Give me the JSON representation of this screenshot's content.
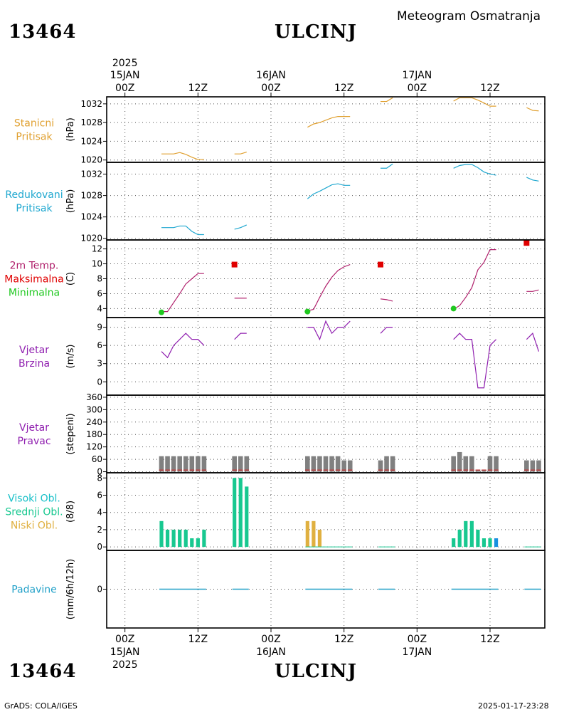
{
  "header": {
    "station_id": "13464",
    "station_name": "ULCINJ",
    "product": "Meteogram Osmatranja"
  },
  "footer": {
    "station_id": "13464",
    "station_name": "ULCINJ",
    "software": "GrADS: COLA/IGES",
    "timestamp": "2025-01-17-23:28"
  },
  "time_axis": {
    "year": "2025",
    "labels": [
      {
        "hour": "00Z",
        "date": "15JAN",
        "year": "2025",
        "t": 0
      },
      {
        "hour": "12Z",
        "t": 12
      },
      {
        "hour": "00Z",
        "date": "16JAN",
        "t": 24
      },
      {
        "hour": "12Z",
        "t": 36
      },
      {
        "hour": "00Z",
        "date": "17JAN",
        "t": 48
      },
      {
        "hour": "12Z",
        "t": 60
      }
    ],
    "range_hours": [
      -3,
      69
    ]
  },
  "colors": {
    "station_pressure": "#e0a030",
    "reduced_pressure": "#20a8d0",
    "temp_line": "#b0206c",
    "temp_max": "#e00000",
    "temp_min": "#20c820",
    "wind": "#9020b0",
    "wind_dir_bar": "#808080",
    "wind_dir_base": "#c04040",
    "cloud_high": "#18c0c8",
    "cloud_mid": "#18c890",
    "cloud_low": "#e0b040",
    "cloud_blue": "#1890e0",
    "precip": "#20a0c8"
  },
  "chart_data": [
    {
      "type": "line",
      "id": "station_pressure",
      "labels": [
        "Stanicni",
        "Pritisak"
      ],
      "ylabel": "(hPa)",
      "ylim": [
        1019.5,
        1033.5
      ],
      "yticks": [
        1020,
        1024,
        1028,
        1032
      ],
      "segments": [
        [
          [
            6,
            1021.3
          ],
          [
            8,
            1021.3
          ],
          [
            9,
            1021.6
          ],
          [
            10,
            1021.2
          ],
          [
            11,
            1020.6
          ],
          [
            12,
            1020.1
          ],
          [
            13,
            1020.1
          ]
        ],
        [
          [
            18,
            1021.3
          ],
          [
            19,
            1021.3
          ],
          [
            20,
            1021.7
          ]
        ],
        [
          [
            30,
            1027.0
          ],
          [
            31,
            1027.7
          ],
          [
            32,
            1028.0
          ],
          [
            33,
            1028.5
          ],
          [
            34,
            1029.0
          ],
          [
            35,
            1029.3
          ],
          [
            36,
            1029.3
          ],
          [
            37,
            1029.3
          ]
        ],
        [
          [
            42,
            1032.5
          ],
          [
            43,
            1032.5
          ],
          [
            44,
            1033.3
          ]
        ],
        [
          [
            54,
            1032.6
          ],
          [
            55,
            1033.3
          ],
          [
            56,
            1033.3
          ],
          [
            57,
            1033.3
          ],
          [
            58,
            1032.8
          ],
          [
            59,
            1032.2
          ],
          [
            60,
            1031.5
          ],
          [
            61,
            1031.5
          ]
        ],
        [
          [
            66,
            1031.2
          ],
          [
            67,
            1030.6
          ],
          [
            68,
            1030.5
          ]
        ]
      ]
    },
    {
      "type": "line",
      "id": "reduced_pressure",
      "labels": [
        "Redukovani",
        "Pritisak"
      ],
      "ylabel": "(hPa)",
      "ylim": [
        1019.7,
        1034.2
      ],
      "yticks": [
        1020,
        1024,
        1028,
        1032
      ],
      "segments": [
        [
          [
            6,
            1022.0
          ],
          [
            8,
            1022.0
          ],
          [
            9,
            1022.3
          ],
          [
            10,
            1022.3
          ],
          [
            11,
            1021.3
          ],
          [
            12,
            1020.7
          ],
          [
            13,
            1020.7
          ]
        ],
        [
          [
            18,
            1021.7
          ],
          [
            19,
            1022.0
          ],
          [
            20,
            1022.5
          ]
        ],
        [
          [
            30,
            1027.4
          ],
          [
            31,
            1028.3
          ],
          [
            32,
            1028.8
          ],
          [
            33,
            1029.4
          ],
          [
            34,
            1030.0
          ],
          [
            35,
            1030.2
          ],
          [
            36,
            1029.9
          ],
          [
            37,
            1029.9
          ]
        ],
        [
          [
            42,
            1033.1
          ],
          [
            43,
            1033.1
          ],
          [
            44,
            1033.9
          ]
        ],
        [
          [
            54,
            1033.1
          ],
          [
            55,
            1033.6
          ],
          [
            56,
            1033.8
          ],
          [
            57,
            1033.8
          ],
          [
            58,
            1033.2
          ],
          [
            59,
            1032.4
          ],
          [
            60,
            1032.0
          ],
          [
            61,
            1031.8
          ]
        ],
        [
          [
            66,
            1031.4
          ],
          [
            67,
            1030.9
          ],
          [
            68,
            1030.7
          ]
        ]
      ]
    },
    {
      "type": "line",
      "id": "temperature",
      "labels": [
        "2m Temp.",
        "Maksimalna",
        "Minimalna"
      ],
      "ylabel": "(C)",
      "ylim": [
        2.8,
        13.2
      ],
      "yticks": [
        4,
        6,
        8,
        10,
        12
      ],
      "segments": [
        [
          [
            6,
            3.6
          ],
          [
            7,
            3.6
          ],
          [
            8,
            4.8
          ],
          [
            9,
            6.0
          ],
          [
            10,
            7.3
          ],
          [
            11,
            8.0
          ],
          [
            12,
            8.7
          ],
          [
            13,
            8.7
          ]
        ],
        [
          [
            18,
            5.4
          ],
          [
            19,
            5.4
          ],
          [
            20,
            5.4
          ]
        ],
        [
          [
            30,
            3.7
          ],
          [
            31,
            3.9
          ],
          [
            32,
            5.5
          ],
          [
            33,
            7.0
          ],
          [
            34,
            8.2
          ],
          [
            35,
            9.1
          ],
          [
            36,
            9.6
          ],
          [
            37,
            9.9
          ]
        ],
        [
          [
            42,
            5.3
          ],
          [
            43,
            5.2
          ],
          [
            44,
            5.0
          ]
        ],
        [
          [
            54,
            3.9
          ],
          [
            55,
            4.4
          ],
          [
            56,
            5.5
          ],
          [
            57,
            6.8
          ],
          [
            58,
            9.2
          ],
          [
            59,
            10.2
          ],
          [
            60,
            11.9
          ],
          [
            61,
            11.9
          ]
        ],
        [
          [
            66,
            6.3
          ],
          [
            67,
            6.3
          ],
          [
            68,
            6.5
          ]
        ]
      ],
      "max_points": [
        [
          18,
          9.9
        ],
        [
          42,
          9.9
        ],
        [
          66,
          12.8
        ]
      ],
      "min_points": [
        [
          6,
          3.5
        ],
        [
          30,
          3.6
        ],
        [
          54,
          4.0
        ]
      ]
    },
    {
      "type": "line",
      "id": "wind_speed",
      "labels": [
        "Vjetar",
        "Brzina"
      ],
      "ylabel": "(m/s)",
      "ylim": [
        -2.2,
        10.6
      ],
      "yticks": [
        0,
        3,
        6,
        9
      ],
      "segments": [
        [
          [
            6,
            5.0
          ],
          [
            7,
            4.0
          ],
          [
            8,
            6.0
          ],
          [
            9,
            7.0
          ],
          [
            10,
            8.0
          ],
          [
            11,
            7.0
          ],
          [
            12,
            7.0
          ],
          [
            13,
            6.0
          ]
        ],
        [
          [
            18,
            7.0
          ],
          [
            19,
            8.0
          ],
          [
            20,
            8.0
          ]
        ],
        [
          [
            30,
            9.0
          ],
          [
            31,
            9.0
          ],
          [
            32,
            7.0
          ],
          [
            33,
            10.0
          ],
          [
            34,
            8.0
          ],
          [
            35,
            9.0
          ],
          [
            36,
            9.0
          ],
          [
            37,
            10.0
          ]
        ],
        [
          [
            42,
            8.0
          ],
          [
            43,
            9.0
          ],
          [
            44,
            9.0
          ]
        ],
        [
          [
            54,
            7.0
          ],
          [
            55,
            8.0
          ],
          [
            56,
            7.0
          ],
          [
            57,
            7.0
          ],
          [
            58,
            -1.0
          ],
          [
            59,
            -1.0
          ],
          [
            60,
            6.0
          ],
          [
            61,
            7.0
          ]
        ],
        [
          [
            66,
            7.0
          ],
          [
            67,
            8.0
          ],
          [
            68,
            5.0
          ]
        ]
      ]
    },
    {
      "type": "bar",
      "id": "wind_direction",
      "labels": [
        "Vjetar",
        "Pravac"
      ],
      "ylabel": "(stepeni)",
      "ylim": [
        -5,
        370
      ],
      "yticks": [
        0,
        60,
        120,
        180,
        240,
        300,
        360
      ],
      "bars": [
        [
          6,
          75
        ],
        [
          7,
          75
        ],
        [
          8,
          75
        ],
        [
          9,
          75
        ],
        [
          10,
          75
        ],
        [
          11,
          75
        ],
        [
          12,
          75
        ],
        [
          13,
          75
        ],
        [
          18,
          75
        ],
        [
          19,
          75
        ],
        [
          20,
          75
        ],
        [
          30,
          75
        ],
        [
          31,
          75
        ],
        [
          32,
          75
        ],
        [
          33,
          75
        ],
        [
          34,
          75
        ],
        [
          35,
          75
        ],
        [
          36,
          55
        ],
        [
          37,
          55
        ],
        [
          42,
          55
        ],
        [
          43,
          75
        ],
        [
          44,
          75
        ],
        [
          54,
          75
        ],
        [
          55,
          95
        ],
        [
          56,
          75
        ],
        [
          57,
          75
        ],
        [
          58,
          10
        ],
        [
          59,
          10
        ],
        [
          60,
          75
        ],
        [
          61,
          75
        ],
        [
          66,
          55
        ],
        [
          67,
          55
        ],
        [
          68,
          55
        ]
      ]
    },
    {
      "type": "bar",
      "id": "clouds",
      "labels": [
        "Visoki Obl.",
        "Srednji Obl.",
        "Niski Obl."
      ],
      "ylabel": "(8/8)",
      "ylim": [
        -0.4,
        8.6
      ],
      "yticks": [
        0,
        2,
        4,
        6,
        8
      ],
      "bars": [
        [
          6,
          3,
          "mid"
        ],
        [
          7,
          2,
          "mid"
        ],
        [
          8,
          2,
          "mid"
        ],
        [
          9,
          2,
          "mid"
        ],
        [
          10,
          2,
          "mid"
        ],
        [
          11,
          1,
          "mid"
        ],
        [
          12,
          1,
          "mid"
        ],
        [
          13,
          2,
          "mid"
        ],
        [
          18,
          8,
          "mid"
        ],
        [
          19,
          8,
          "mid"
        ],
        [
          20,
          7,
          "mid"
        ],
        [
          30,
          3,
          "low"
        ],
        [
          31,
          3,
          "low"
        ],
        [
          32,
          2,
          "low"
        ],
        [
          54,
          1,
          "mid"
        ],
        [
          55,
          2,
          "mid"
        ],
        [
          56,
          3,
          "mid"
        ],
        [
          57,
          3,
          "mid"
        ],
        [
          58,
          2,
          "mid"
        ],
        [
          59,
          1,
          "mid"
        ],
        [
          60,
          1,
          "mid"
        ],
        [
          61,
          1,
          "blue"
        ]
      ]
    },
    {
      "type": "bar",
      "id": "precipitation",
      "labels": [
        "Padavine"
      ],
      "ylabel": "(mm/6h/12h)",
      "ylim": [
        -1,
        1
      ],
      "yticks": [
        0
      ],
      "zero_segments": [
        [
          6,
          13
        ],
        [
          18,
          20
        ],
        [
          30,
          37
        ],
        [
          42,
          44
        ],
        [
          54,
          61
        ],
        [
          66,
          68
        ]
      ]
    }
  ]
}
